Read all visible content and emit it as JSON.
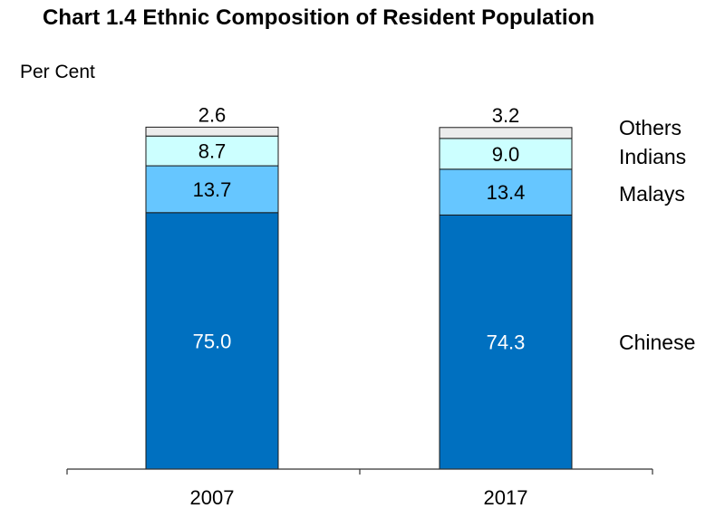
{
  "title": "Chart 1.4  Ethnic Composition of Resident Population",
  "ylabel": "Per Cent",
  "colors": {
    "Chinese": "#0070c0",
    "Malays": "#66c6ff",
    "Indians": "#ccffff",
    "Others": "#ececec",
    "outline": "#1a1a1a",
    "label_light": "#ffffff",
    "label_dark": "#000000"
  },
  "chart_data": {
    "type": "bar",
    "stacked": true,
    "categories": [
      "2007",
      "2017"
    ],
    "series": [
      {
        "name": "Chinese",
        "values": [
          75.0,
          74.3
        ]
      },
      {
        "name": "Malays",
        "values": [
          13.7,
          13.4
        ]
      },
      {
        "name": "Indians",
        "values": [
          8.7,
          9.0
        ]
      },
      {
        "name": "Others",
        "values": [
          2.6,
          3.2
        ]
      }
    ],
    "data_labels": [
      [
        "75.0",
        "13.7",
        "8.7",
        "2.6"
      ],
      [
        "74.3",
        "13.4",
        "9.0",
        "3.2"
      ]
    ],
    "title": "Chart 1.4  Ethnic Composition of Resident Population",
    "xlabel": "",
    "ylabel": "Per Cent",
    "ylim": [
      0,
      100
    ],
    "grid": false,
    "legend": "right"
  }
}
